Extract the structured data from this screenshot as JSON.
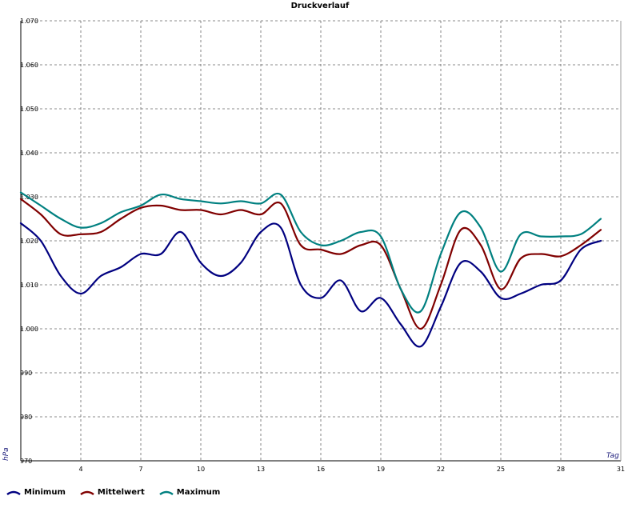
{
  "chart_data": {
    "type": "line",
    "title": "Druckverlauf",
    "xlabel": "Tag",
    "ylabel": "hPa",
    "xlim": [
      1,
      31
    ],
    "ylim": [
      970,
      1070
    ],
    "x_ticks": [
      1,
      4,
      7,
      10,
      13,
      16,
      19,
      22,
      25,
      28,
      31
    ],
    "x_tick_labels": [
      "",
      "4",
      "7",
      "10",
      "13",
      "16",
      "19",
      "22",
      "25",
      "28",
      "31"
    ],
    "y_ticks": [
      970,
      980,
      990,
      1000,
      1010,
      1020,
      1030,
      1040,
      1050,
      1060,
      1070
    ],
    "y_tick_labels": [
      "970",
      "980",
      "990",
      "1.000",
      "1.010",
      "1.020",
      "1.030",
      "1.040",
      "1.050",
      "1.060",
      "1.070"
    ],
    "grid": true,
    "legend_position": "bottom-left",
    "x": [
      1,
      2,
      3,
      4,
      5,
      6,
      7,
      8,
      9,
      10,
      11,
      12,
      13,
      14,
      15,
      16,
      17,
      18,
      19,
      20,
      21,
      22,
      23,
      24,
      25,
      26,
      27,
      28,
      29,
      30
    ],
    "series": [
      {
        "name": "Minimum",
        "color": "#000080",
        "values": [
          1024,
          1020,
          1012,
          1008,
          1012,
          1014,
          1017,
          1017,
          1022,
          1015,
          1012,
          1015,
          1022,
          1023,
          1010,
          1007,
          1011,
          1004,
          1007,
          1001,
          996,
          1005,
          1015,
          1013,
          1007,
          1008,
          1010,
          1011,
          1018,
          1020
        ]
      },
      {
        "name": "Mittelwert",
        "color": "#800000",
        "values": [
          1029.5,
          1026,
          1021.5,
          1021.5,
          1022,
          1025,
          1027.5,
          1028,
          1027,
          1027,
          1026,
          1027,
          1026,
          1028.5,
          1019,
          1018,
          1017,
          1019,
          1019,
          1009,
          1000,
          1010,
          1022.5,
          1019,
          1009,
          1016,
          1017,
          1016.5,
          1019,
          1022.5
        ]
      },
      {
        "name": "Maximum",
        "color": "#008080",
        "values": [
          1031,
          1028,
          1025,
          1023,
          1024,
          1026.5,
          1028,
          1030.5,
          1029.5,
          1029,
          1028.5,
          1029,
          1028.5,
          1030.5,
          1022,
          1019,
          1020,
          1022,
          1021,
          1009,
          1004,
          1017,
          1026.5,
          1023,
          1013,
          1021.5,
          1021,
          1021,
          1021.5,
          1025
        ]
      }
    ]
  }
}
